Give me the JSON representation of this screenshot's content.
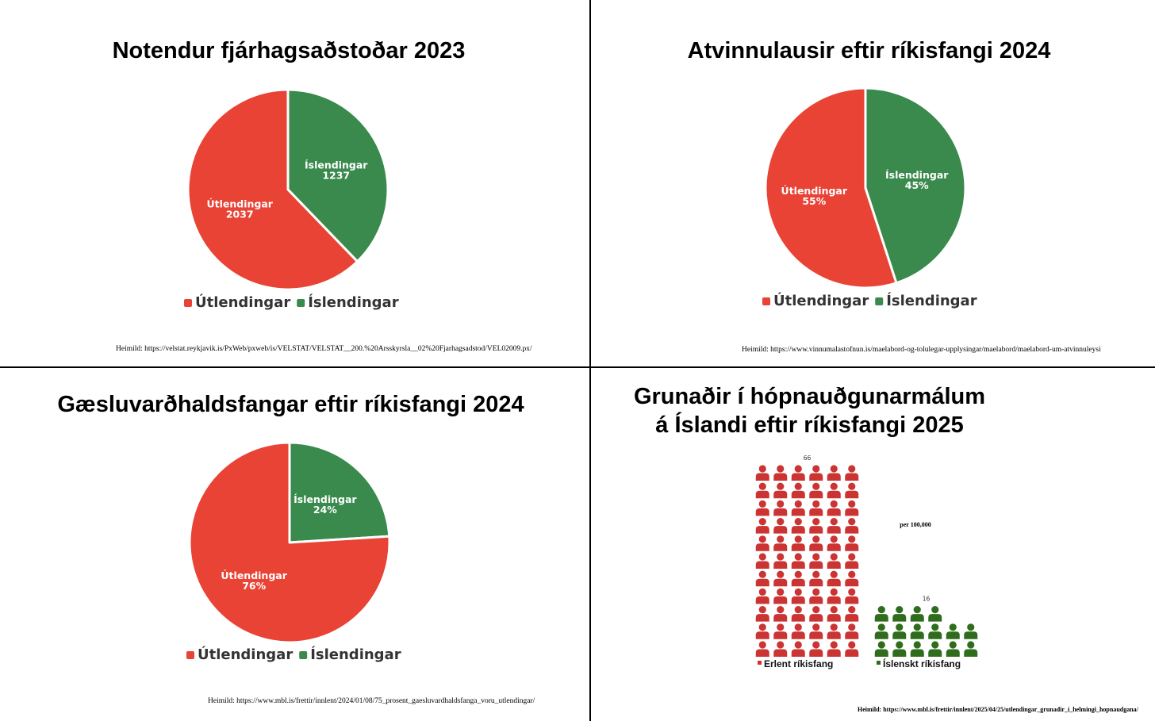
{
  "colors": {
    "foreign": "#e94335",
    "icelandic": "#3a8a4d",
    "foreign_icon": "#cc3333",
    "icelandic_icon": "#2f6d1c"
  },
  "chart_data": [
    {
      "type": "pie",
      "title": "Notendur fjárhagsaðstoðar 2023",
      "source": "Heimild: https://velstat.reykjavik.is/PxWeb/pxweb/is/VELSTAT/VELSTAT__200.%20Arsskyrsla__02%20Fjarhagsadstod/VEL02009.px/",
      "slices": [
        {
          "label": "Útlendingar",
          "value": 2037,
          "display": "2037",
          "color": "#e94335"
        },
        {
          "label": "Íslendingar",
          "value": 1237,
          "display": "1237",
          "color": "#3a8a4d"
        }
      ],
      "legend": [
        "Útlendingar",
        "Íslendingar"
      ],
      "legend_position": "bottom"
    },
    {
      "type": "pie",
      "title": "Atvinnulausir eftir ríkisfangi 2024",
      "source": "Heimild: https://www.vinnumalastofnun.is/maelabord-og-tolulegar-upplysingar/maelabord/maelabord-um-atvinnuleysi",
      "slices": [
        {
          "label": "Útlendingar",
          "value": 55,
          "display": "55%",
          "color": "#e94335"
        },
        {
          "label": "Íslendingar",
          "value": 45,
          "display": "45%",
          "color": "#3a8a4d"
        }
      ],
      "legend": [
        "Útlendingar",
        "Íslendingar"
      ],
      "legend_position": "bottom"
    },
    {
      "type": "pie",
      "title": "Gæsluvarðhaldsfangar eftir ríkisfangi 2024",
      "source": "Heimild: https://www.mbl.is/frettir/innlent/2024/01/08/75_prosent_gaesluvardhaldsfanga_voru_utlendingar/",
      "slices": [
        {
          "label": "Útlendingar",
          "value": 76,
          "display": "76%",
          "color": "#e94335"
        },
        {
          "label": "Íslendingar",
          "value": 24,
          "display": "24%",
          "color": "#3a8a4d"
        }
      ],
      "legend": [
        "Útlendingar",
        "Íslendingar"
      ],
      "legend_position": "bottom"
    },
    {
      "type": "bar",
      "subtype": "pictograph",
      "title_line1": "Grunaðir í hópnauðgunarmálum",
      "title_line2": "á Íslandi eftir ríkisfangi 2025",
      "annotation": "per 100,000",
      "source": "Heimild: https://www.mbl.is/frettir/innlent/2025/04/25/utlendingar_grunadir_i_helmingi_hopnaudgana/",
      "categories": [
        "Erlent ríkisfang",
        "Íslenskt ríkisfang"
      ],
      "values": [
        66,
        16
      ],
      "value_labels": [
        "66",
        "16"
      ],
      "colors": [
        "#cc3333",
        "#2f6d1c"
      ],
      "legend_position": "bottom"
    }
  ]
}
